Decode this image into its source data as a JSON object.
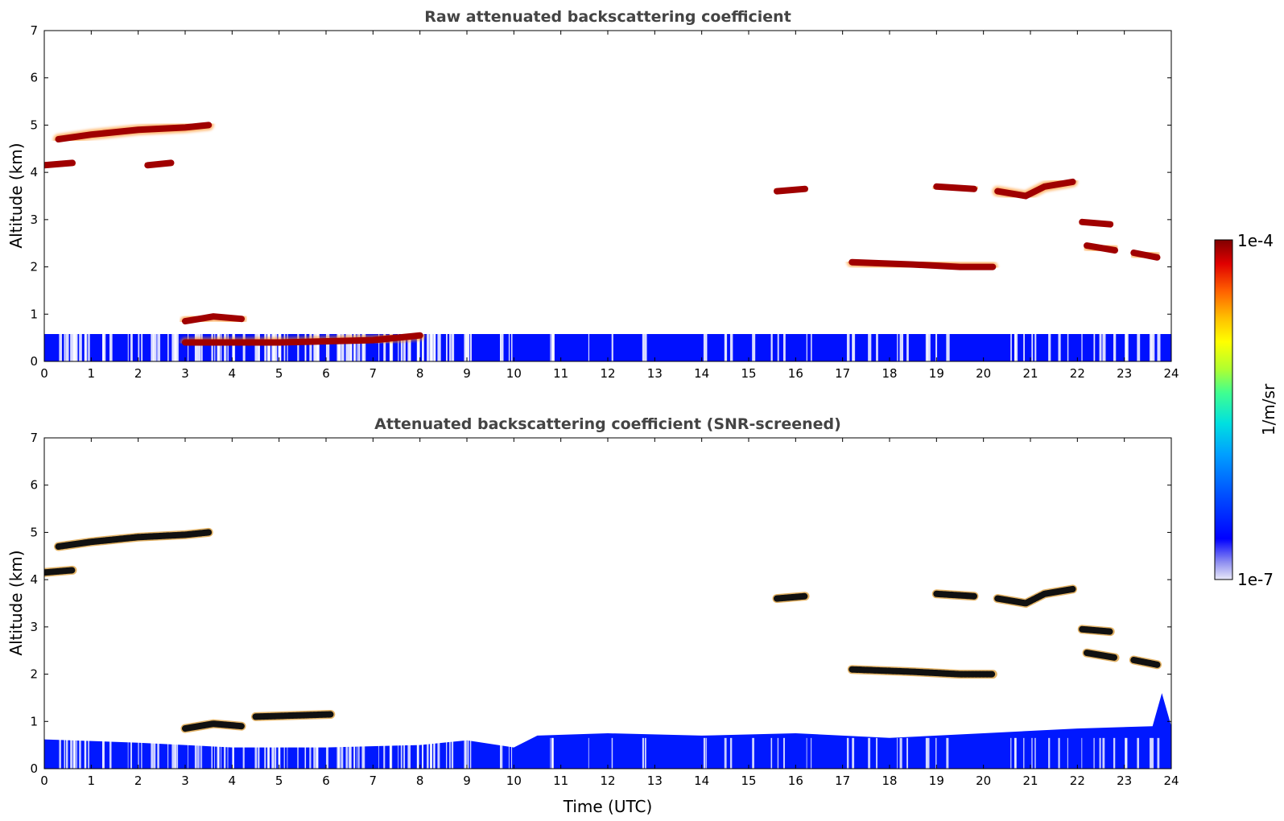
{
  "chart_data": [
    {
      "type": "heatmap",
      "title": "Raw attenuated backscattering coefficient",
      "xlabel": "",
      "ylabel": "Altitude (km)",
      "xlim": [
        0,
        24
      ],
      "ylim": [
        0,
        7
      ],
      "xticks": [
        "0",
        "1",
        "2",
        "3",
        "4",
        "5",
        "6",
        "7",
        "8",
        "9",
        "10",
        "11",
        "12",
        "13",
        "14",
        "15",
        "16",
        "17",
        "18",
        "19",
        "20",
        "21",
        "22",
        "23",
        "24"
      ],
      "yticks": [
        "0",
        "1",
        "2",
        "3",
        "4",
        "5",
        "6",
        "7"
      ],
      "features": [
        {
          "name": "",
          "level": "high",
          "points": [
            [
              0.3,
              4.7
            ],
            [
              1.0,
              4.8
            ],
            [
              2.0,
              4.9
            ],
            [
              3.0,
              4.95
            ],
            [
              3.5,
              5.0
            ]
          ]
        },
        {
          "name": "",
          "level": "high",
          "points": [
            [
              0.0,
              4.15
            ],
            [
              0.6,
              4.2
            ]
          ]
        },
        {
          "name": "",
          "level": "high",
          "points": [
            [
              2.2,
              4.15
            ],
            [
              2.7,
              4.2
            ]
          ]
        },
        {
          "name": "",
          "level": "high",
          "points": [
            [
              3.0,
              0.85
            ],
            [
              3.6,
              0.95
            ],
            [
              4.2,
              0.9
            ]
          ]
        },
        {
          "name": "",
          "level": "high",
          "points": [
            [
              3.0,
              0.4
            ],
            [
              5.0,
              0.4
            ],
            [
              7.0,
              0.45
            ],
            [
              8.0,
              0.55
            ]
          ]
        },
        {
          "name": "",
          "level": "high",
          "points": [
            [
              15.6,
              3.6
            ],
            [
              16.2,
              3.65
            ]
          ]
        },
        {
          "name": "",
          "level": "high",
          "points": [
            [
              17.2,
              2.1
            ],
            [
              18.5,
              2.05
            ],
            [
              19.5,
              2.0
            ],
            [
              20.2,
              2.0
            ]
          ]
        },
        {
          "name": "",
          "level": "high",
          "points": [
            [
              19.0,
              3.7
            ],
            [
              19.8,
              3.65
            ]
          ]
        },
        {
          "name": "",
          "level": "high",
          "points": [
            [
              20.3,
              3.6
            ],
            [
              20.9,
              3.5
            ],
            [
              21.3,
              3.7
            ],
            [
              21.9,
              3.8
            ]
          ]
        },
        {
          "name": "",
          "level": "high",
          "points": [
            [
              22.1,
              2.95
            ],
            [
              22.7,
              2.9
            ]
          ]
        },
        {
          "name": "",
          "level": "high",
          "points": [
            [
              22.2,
              2.45
            ],
            [
              22.8,
              2.35
            ]
          ]
        },
        {
          "name": "",
          "level": "high",
          "points": [
            [
              23.2,
              2.3
            ],
            [
              23.7,
              2.2
            ]
          ]
        }
      ]
    },
    {
      "type": "heatmap",
      "title": "Attenuated backscattering coefficient (SNR-screened)",
      "xlabel": "Time (UTC)",
      "ylabel": "Altitude (km)",
      "xlim": [
        0,
        24
      ],
      "ylim": [
        0,
        7
      ],
      "xticks": [
        "0",
        "1",
        "2",
        "3",
        "4",
        "5",
        "6",
        "7",
        "8",
        "9",
        "10",
        "11",
        "12",
        "13",
        "14",
        "15",
        "16",
        "17",
        "18",
        "19",
        "20",
        "21",
        "22",
        "23",
        "24"
      ],
      "yticks": [
        "0",
        "1",
        "2",
        "3",
        "4",
        "5",
        "6",
        "7"
      ],
      "features": [
        {
          "name": "",
          "level": "high",
          "points": [
            [
              0.3,
              4.7
            ],
            [
              1.0,
              4.8
            ],
            [
              2.0,
              4.9
            ],
            [
              3.0,
              4.95
            ],
            [
              3.5,
              5.0
            ]
          ]
        },
        {
          "name": "",
          "level": "high",
          "points": [
            [
              0.0,
              4.15
            ],
            [
              0.6,
              4.2
            ]
          ]
        },
        {
          "name": "",
          "level": "high",
          "points": [
            [
              3.0,
              0.85
            ],
            [
              3.6,
              0.95
            ],
            [
              4.2,
              0.9
            ]
          ]
        },
        {
          "name": "",
          "level": "high",
          "points": [
            [
              4.5,
              1.1
            ],
            [
              6.1,
              1.15
            ]
          ]
        },
        {
          "name": "",
          "level": "high",
          "points": [
            [
              15.6,
              3.6
            ],
            [
              16.2,
              3.65
            ]
          ]
        },
        {
          "name": "",
          "level": "high",
          "points": [
            [
              17.2,
              2.1
            ],
            [
              18.5,
              2.05
            ],
            [
              19.5,
              2.0
            ],
            [
              20.2,
              2.0
            ]
          ]
        },
        {
          "name": "",
          "level": "high",
          "points": [
            [
              19.0,
              3.7
            ],
            [
              19.8,
              3.65
            ]
          ]
        },
        {
          "name": "",
          "level": "high",
          "points": [
            [
              20.3,
              3.6
            ],
            [
              20.9,
              3.5
            ],
            [
              21.3,
              3.7
            ],
            [
              21.9,
              3.8
            ]
          ]
        },
        {
          "name": "",
          "level": "high",
          "points": [
            [
              22.1,
              2.95
            ],
            [
              22.7,
              2.9
            ]
          ]
        },
        {
          "name": "",
          "level": "high",
          "points": [
            [
              22.2,
              2.45
            ],
            [
              22.8,
              2.35
            ]
          ]
        },
        {
          "name": "",
          "level": "high",
          "points": [
            [
              23.2,
              2.3
            ],
            [
              23.7,
              2.2
            ]
          ]
        }
      ]
    }
  ],
  "colorbar": {
    "max_label": "1e-4",
    "min_label": "1e-7",
    "unit_label": "1/m/sr",
    "colormap": [
      "#e8e8f8",
      "#9090f0",
      "#0000ff",
      "#0050ff",
      "#00a0ff",
      "#00e0e0",
      "#40ff90",
      "#b0ff30",
      "#ffff00",
      "#ffc000",
      "#ff6000",
      "#e00000",
      "#800000"
    ]
  }
}
